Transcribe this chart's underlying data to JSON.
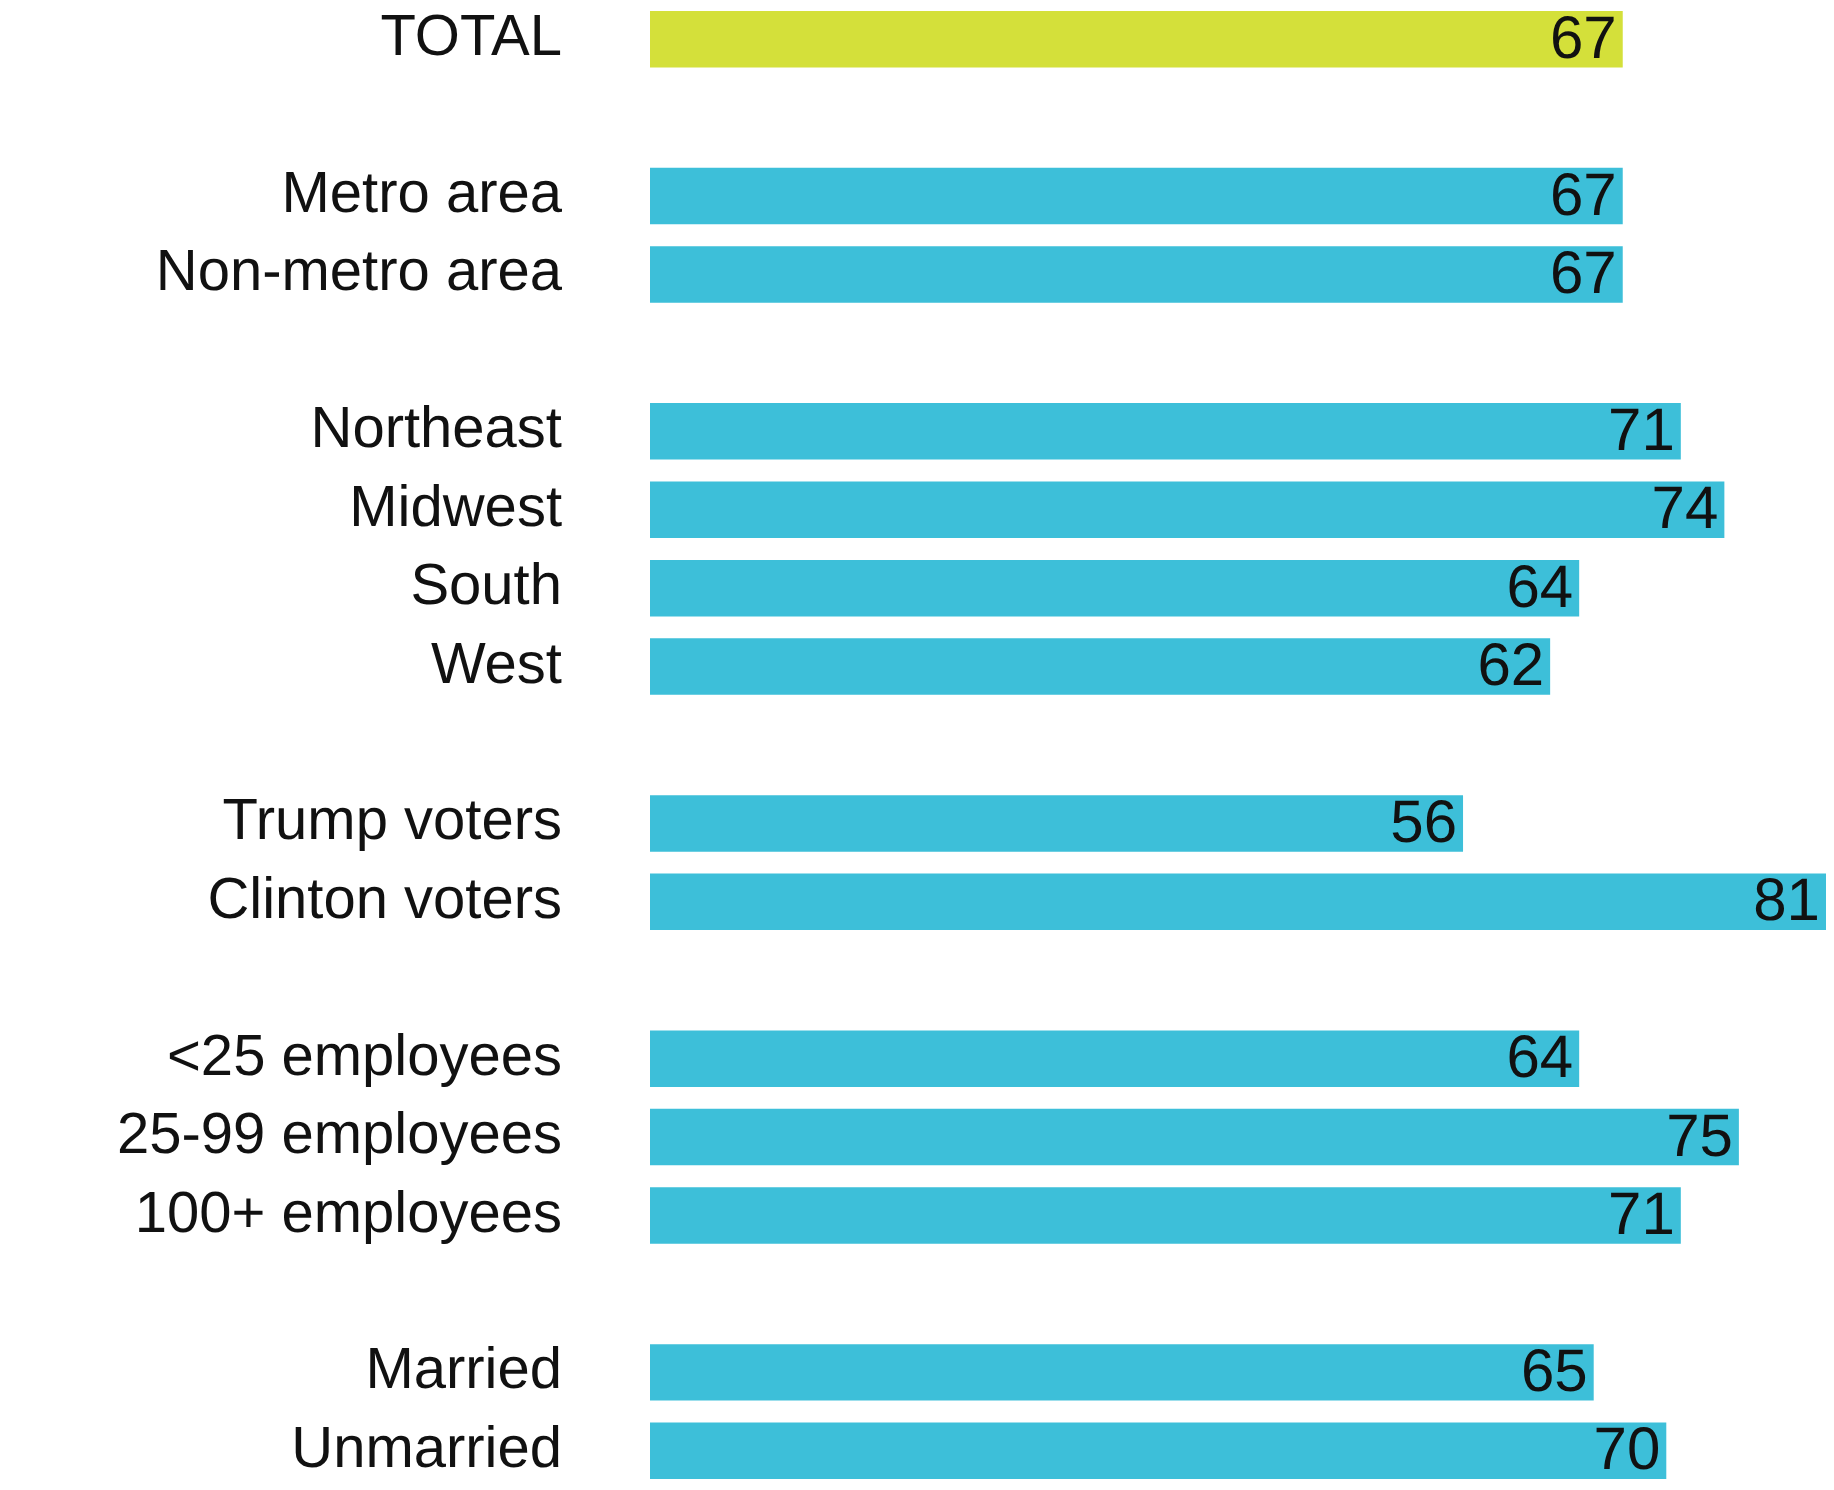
{
  "chart_data": {
    "type": "bar",
    "orientation": "horizontal",
    "data_labels": true,
    "legend": false,
    "categories": [
      "TOTAL",
      null,
      "Metro area",
      "Non-metro area",
      null,
      "Northeast",
      "Midwest",
      "South",
      "West",
      null,
      "Trump voters",
      "Clinton voters",
      null,
      "<25 employees",
      "25-99 employees",
      "100+ employees",
      null,
      "Married",
      "Unmarried"
    ],
    "values": [
      67,
      null,
      67,
      67,
      null,
      71,
      74,
      64,
      62,
      null,
      56,
      81,
      null,
      64,
      75,
      71,
      null,
      65,
      70
    ],
    "colors": [
      "#d4e03a",
      null,
      "#3dbfd9",
      "#3dbfd9",
      null,
      "#3dbfd9",
      "#3dbfd9",
      "#3dbfd9",
      "#3dbfd9",
      null,
      "#3dbfd9",
      "#3dbfd9",
      null,
      "#3dbfd9",
      "#3dbfd9",
      "#3dbfd9",
      null,
      "#3dbfd9",
      "#3dbfd9"
    ]
  }
}
